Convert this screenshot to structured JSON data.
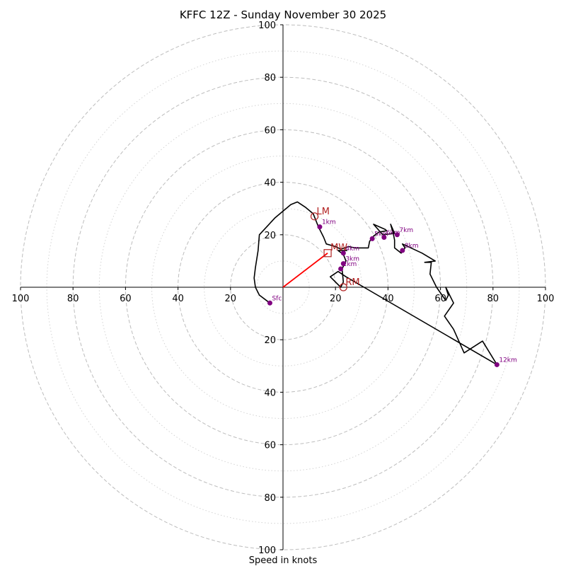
{
  "chart_data": {
    "type": "hodograph",
    "title": "KFFC 12Z - Sunday November 30 2025",
    "xlabel": "Speed in knots",
    "xlim": [
      -100,
      100
    ],
    "ylim": [
      -100,
      100
    ],
    "ring_major": [
      20,
      40,
      60,
      80,
      100
    ],
    "ring_minor": [
      10,
      30,
      50,
      70,
      90
    ],
    "x_ticks": [
      {
        "value": -100,
        "label": "100"
      },
      {
        "value": -80,
        "label": "80"
      },
      {
        "value": -60,
        "label": "60"
      },
      {
        "value": -40,
        "label": "40"
      },
      {
        "value": -20,
        "label": "20"
      },
      {
        "value": 20,
        "label": "20"
      },
      {
        "value": 40,
        "label": "40"
      },
      {
        "value": 60,
        "label": "60"
      },
      {
        "value": 80,
        "label": "80"
      },
      {
        "value": 100,
        "label": "100"
      }
    ],
    "y_ticks": [
      {
        "value": 100,
        "label": "100"
      },
      {
        "value": 80,
        "label": "80"
      },
      {
        "value": 60,
        "label": "60"
      },
      {
        "value": 40,
        "label": "40"
      },
      {
        "value": 20,
        "label": "20"
      },
      {
        "value": -20,
        "label": "20"
      },
      {
        "value": -40,
        "label": "40"
      },
      {
        "value": -60,
        "label": "60"
      },
      {
        "value": -80,
        "label": "80"
      },
      {
        "value": -100,
        "label": "100"
      }
    ],
    "hodograph_line": [
      [
        -5,
        -6
      ],
      [
        -9,
        -3
      ],
      [
        -10.5,
        0
      ],
      [
        -11,
        3.5
      ],
      [
        -10.5,
        7.5
      ],
      [
        -9.5,
        14
      ],
      [
        -9,
        20
      ],
      [
        -3,
        26.5
      ],
      [
        3,
        31.5
      ],
      [
        5.5,
        32.5
      ],
      [
        8.5,
        30.5
      ],
      [
        11.5,
        28
      ],
      [
        13.5,
        23
      ],
      [
        15.5,
        19
      ],
      [
        16.5,
        16.5
      ],
      [
        20,
        15.5
      ],
      [
        22,
        14.5
      ],
      [
        25,
        15.5
      ],
      [
        27.5,
        15
      ],
      [
        32.5,
        15
      ],
      [
        33,
        17.5
      ],
      [
        34.5,
        19.5
      ],
      [
        36.5,
        21
      ],
      [
        39.5,
        21.5
      ],
      [
        39,
        22
      ],
      [
        34.5,
        24
      ],
      [
        38,
        20
      ],
      [
        42.5,
        20.5
      ],
      [
        41,
        24
      ],
      [
        42,
        20.5
      ],
      [
        42.5,
        18
      ],
      [
        42.5,
        15
      ],
      [
        45,
        13
      ],
      [
        46.5,
        15
      ],
      [
        45.5,
        16.5
      ],
      [
        53,
        13
      ],
      [
        58,
        10
      ],
      [
        54,
        9.5
      ],
      [
        56.5,
        9.5
      ],
      [
        56,
        5
      ],
      [
        58.5,
        0
      ],
      [
        62,
        -5
      ],
      [
        63,
        -3
      ],
      [
        62,
        0
      ],
      [
        65,
        -6
      ],
      [
        61.5,
        -11
      ],
      [
        65,
        -16
      ],
      [
        69,
        -25
      ],
      [
        76,
        -20.5
      ],
      [
        81.5,
        -29.5
      ],
      [
        24,
        4
      ],
      [
        21,
        6
      ],
      [
        18,
        4
      ],
      [
        22,
        0
      ],
      [
        23,
        2
      ],
      [
        22.5,
        7
      ],
      [
        24,
        10
      ],
      [
        23,
        12.5
      ],
      [
        21,
        14
      ],
      [
        24.5,
        14
      ]
    ],
    "height_points": [
      {
        "label": "Sfc",
        "u": -5,
        "v": -6
      },
      {
        "label": "1km",
        "u": 14,
        "v": 23
      },
      {
        "label": "2km",
        "u": 22,
        "v": 7
      },
      {
        "label": "3km",
        "u": 23,
        "v": 9
      },
      {
        "label": "4km",
        "u": 23,
        "v": 13
      },
      {
        "label": "5km",
        "u": 34,
        "v": 18.5
      },
      {
        "label": "6km",
        "u": 38.5,
        "v": 19
      },
      {
        "label": "7km",
        "u": 43.5,
        "v": 20
      },
      {
        "label": "8km",
        "u": 45.5,
        "v": 14
      },
      {
        "label": "12km",
        "u": 81.5,
        "v": -29.5
      }
    ],
    "mean_wind": {
      "label": "MW",
      "u": 17,
      "v": 13
    },
    "left_mover": {
      "label": "LM",
      "u": 12,
      "v": 27
    },
    "right_mover": {
      "label": "RM",
      "u": 23,
      "v": 0
    },
    "colors": {
      "line": "#000000",
      "points": "#800080",
      "motion": "#b22222",
      "vector": "#ff0000",
      "grid": "#bdbdbd"
    }
  }
}
